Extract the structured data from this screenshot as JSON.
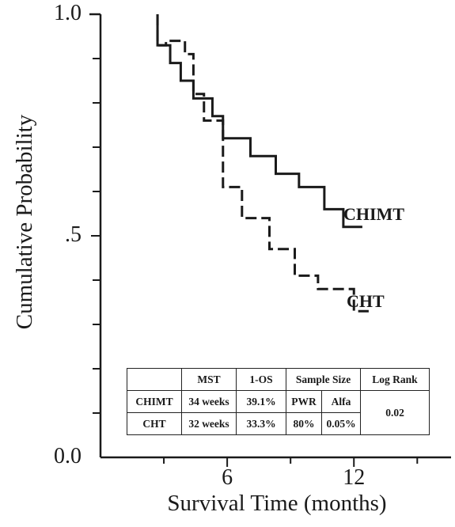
{
  "chart_data": {
    "type": "line",
    "subtype": "kaplan-meier step",
    "xlabel": "Survival Time (months)",
    "ylabel": "Cumulative Probability",
    "x_ticks": [
      6,
      12
    ],
    "x_tick_labels": [
      "6",
      "12"
    ],
    "y_tick_labels": [
      "1.0",
      ".5",
      "0.0"
    ],
    "y_tick_values": [
      1.0,
      0.5,
      0.0
    ],
    "xlim": [
      0,
      16.6
    ],
    "ylim": [
      0,
      1.0
    ],
    "grid": false,
    "legend": "none (series labelled at line ends)",
    "series": [
      {
        "name": "CHIMT",
        "style": "solid",
        "x": [
          2.7,
          2.7,
          3.3,
          3.3,
          3.8,
          3.8,
          4.4,
          4.4,
          5.3,
          5.3,
          5.8,
          5.8,
          7.1,
          7.1,
          8.3,
          8.3,
          9.4,
          9.4,
          10.6,
          10.6,
          11.5,
          11.5,
          12.4
        ],
        "y": [
          1.0,
          0.93,
          0.93,
          0.89,
          0.89,
          0.85,
          0.85,
          0.81,
          0.81,
          0.77,
          0.77,
          0.72,
          0.72,
          0.68,
          0.68,
          0.64,
          0.64,
          0.61,
          0.61,
          0.56,
          0.56,
          0.52,
          0.52
        ]
      },
      {
        "name": "CHT",
        "style": "dashed",
        "x": [
          2.7,
          2.7,
          3.1,
          3.1,
          4.0,
          4.0,
          4.4,
          4.4,
          4.9,
          4.9,
          5.8,
          5.8,
          6.7,
          6.7,
          8.0,
          8.0,
          9.2,
          9.2,
          10.3,
          10.3,
          12.0,
          12.0,
          12.7
        ],
        "y": [
          1.0,
          0.93,
          0.93,
          0.94,
          0.94,
          0.91,
          0.91,
          0.82,
          0.82,
          0.76,
          0.76,
          0.61,
          0.61,
          0.54,
          0.54,
          0.47,
          0.47,
          0.41,
          0.41,
          0.38,
          0.38,
          0.33,
          0.33
        ]
      }
    ],
    "table": {
      "header": [
        "",
        "MST",
        "1-OS",
        "Sample Size",
        "Log Rank"
      ],
      "subheader": [
        "PWR",
        "Alfa"
      ],
      "rows": [
        [
          "CHIMT",
          "34 weeks",
          "39.1%"
        ],
        [
          "CHT",
          "32 weeks",
          "33.3%"
        ]
      ],
      "pwr": "80%",
      "alfa": "0.05%",
      "log_rank": "0.02"
    }
  }
}
